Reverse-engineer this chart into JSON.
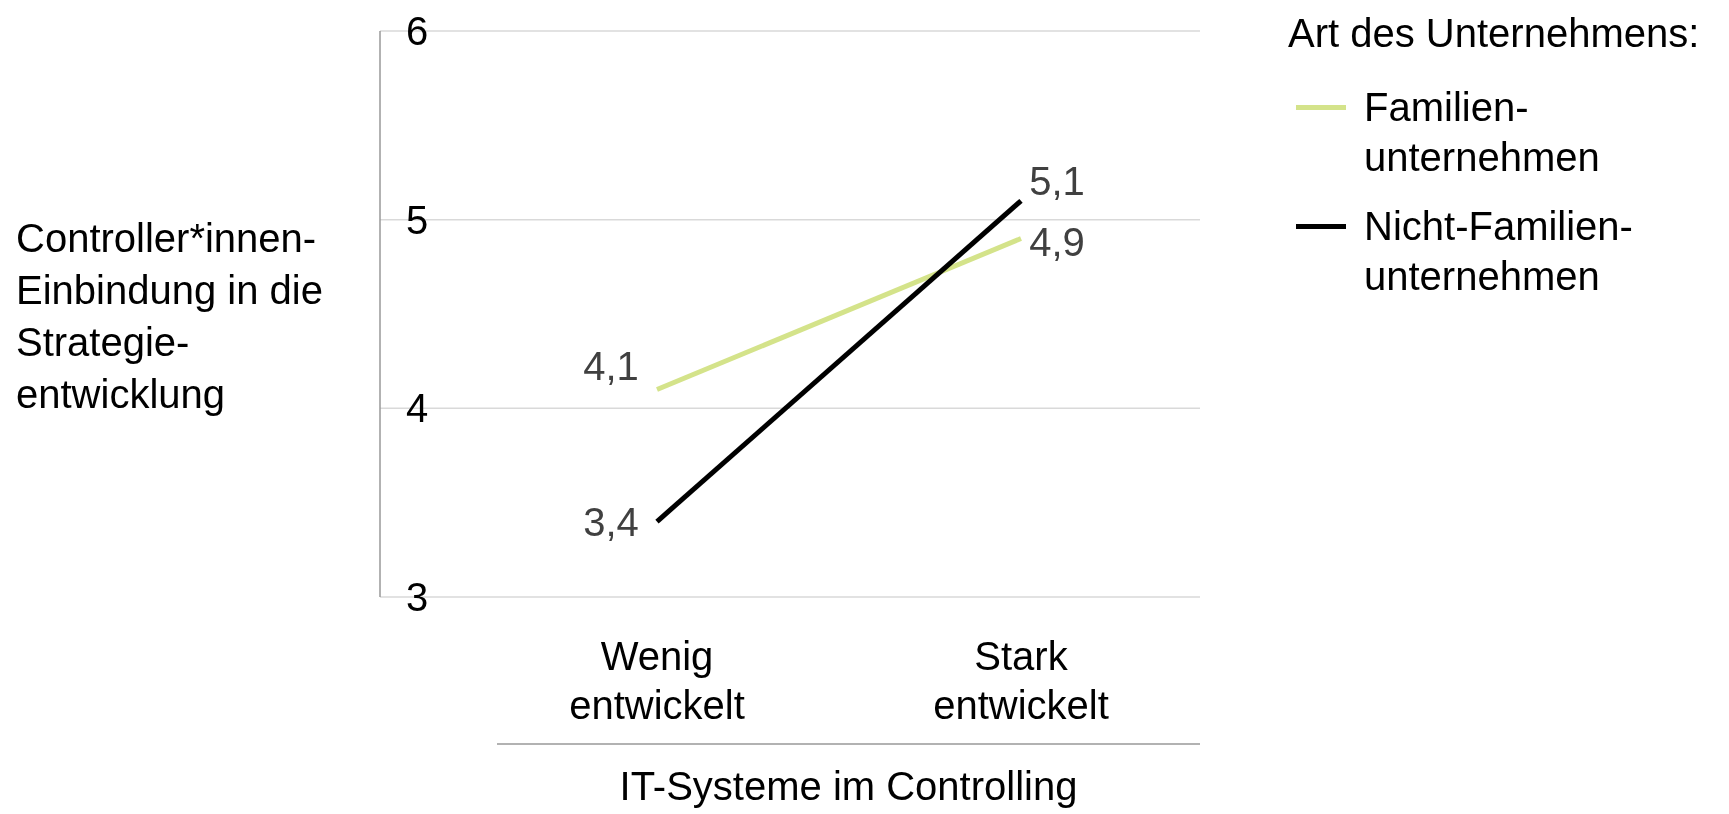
{
  "chart_data": {
    "type": "line",
    "xlabel": "IT-Systeme im Controlling",
    "ylabel": "Controller*innen-Einbindung in die Strategie-entwicklung",
    "legend_title": "Art des Unternehmens:",
    "categories": [
      "Wenig entwickelt",
      "Stark entwickelt"
    ],
    "series": [
      {
        "name": "Familien-unternehmen",
        "color": "#d4e38a",
        "values": [
          4.1,
          4.9
        ],
        "value_labels": [
          "4,1",
          "4,9"
        ]
      },
      {
        "name": "Nicht-Familien-unternehmen",
        "color": "#000000",
        "values": [
          3.4,
          5.1
        ],
        "value_labels": [
          "3,4",
          "5,1"
        ]
      }
    ],
    "ylim": [
      3,
      6
    ],
    "yticks": [
      3,
      4,
      5,
      6
    ],
    "grid": "y",
    "legend": "top right",
    "marker": "none",
    "line_style": "solid"
  }
}
